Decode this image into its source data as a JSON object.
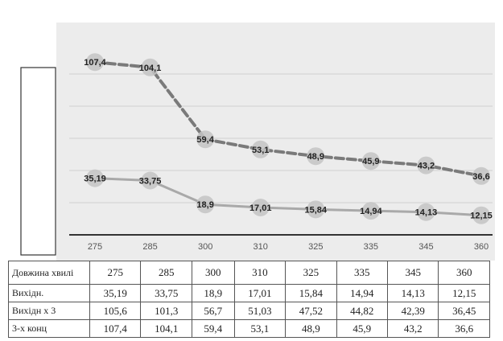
{
  "chart_data": {
    "type": "line",
    "categories": [
      "275",
      "285",
      "300",
      "310",
      "325",
      "335",
      "345",
      "360"
    ],
    "series": [
      {
        "values": [
          107.4,
          104.1,
          59.4,
          53.1,
          48.9,
          45.9,
          43.2,
          36.6
        ],
        "labels": [
          "107,4",
          "104,1",
          "59,4",
          "53,1",
          "48,9",
          "45,9",
          "43,2",
          "36,6"
        ],
        "style": "dashed"
      },
      {
        "values": [
          35.19,
          33.75,
          18.9,
          17.01,
          15.84,
          14.94,
          14.13,
          12.15
        ],
        "labels": [
          "35,19",
          "33,75",
          "18,9",
          "17,01",
          "15,84",
          "14,94",
          "14,13",
          "12,15"
        ],
        "style": "solid"
      }
    ],
    "ylim": [
      0,
      120
    ],
    "grid": true,
    "colors": {
      "dashed_line": "#7a7a7a",
      "solid_line": "#a9a9a9",
      "marker": "#c4c4c4",
      "plot_bg": "#ececec"
    }
  },
  "table": {
    "header_label": "Довжина хвилі",
    "columns": [
      "275",
      "285",
      "300",
      "310",
      "325",
      "335",
      "345",
      "360"
    ],
    "rows": [
      {
        "label": "Вихідн.",
        "values": [
          "35,19",
          "33,75",
          "18,9",
          "17,01",
          "15,84",
          "14,94",
          "14,13",
          "12,15"
        ]
      },
      {
        "label": "Вихідн х 3",
        "values": [
          "105,6",
          "101,3",
          "56,7",
          "51,03",
          "47,52",
          "44,82",
          "42,39",
          "36,45"
        ]
      },
      {
        "label": "3-х конц",
        "values": [
          "107,4",
          "104,1",
          "59,4",
          "53,1",
          "48,9",
          "45,9",
          "43,2",
          "36,6"
        ]
      }
    ]
  }
}
